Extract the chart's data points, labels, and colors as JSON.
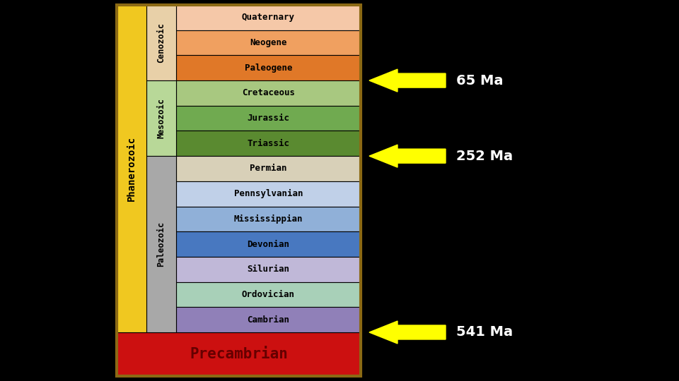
{
  "background_color": "#000000",
  "border_color": "#8B6914",
  "periods": [
    {
      "name": "Quaternary",
      "color": "#F5C8A8"
    },
    {
      "name": "Neogene",
      "color": "#F0A060"
    },
    {
      "name": "Paleogene",
      "color": "#E07828"
    },
    {
      "name": "Cretaceous",
      "color": "#A8C880"
    },
    {
      "name": "Jurassic",
      "color": "#70AA50"
    },
    {
      "name": "Triassic",
      "color": "#5A8A30"
    },
    {
      "name": "Permian",
      "color": "#D8D0B8"
    },
    {
      "name": "Pennsylvanian",
      "color": "#C0D0E8"
    },
    {
      "name": "Mississippian",
      "color": "#90B0D8"
    },
    {
      "name": "Devonian",
      "color": "#4878C0"
    },
    {
      "name": "Silurian",
      "color": "#C0B8D8"
    },
    {
      "name": "Ordovician",
      "color": "#A8D0B8"
    },
    {
      "name": "Cambrian",
      "color": "#9080B8"
    }
  ],
  "era_cenozoic_color": "#E8D0A8",
  "era_mesozoic_color": "#B8D898",
  "era_paleozoic_color": "#A8A8A8",
  "phanerozoic_color": "#F0C820",
  "precambrian_color": "#CC1010",
  "precambrian_text_color": "#660000",
  "arrow_color": "#FFFF00",
  "label_color": "#FFFFFF",
  "arrow_labels": [
    "65 Ma",
    "252 Ma",
    "541 Ma"
  ]
}
